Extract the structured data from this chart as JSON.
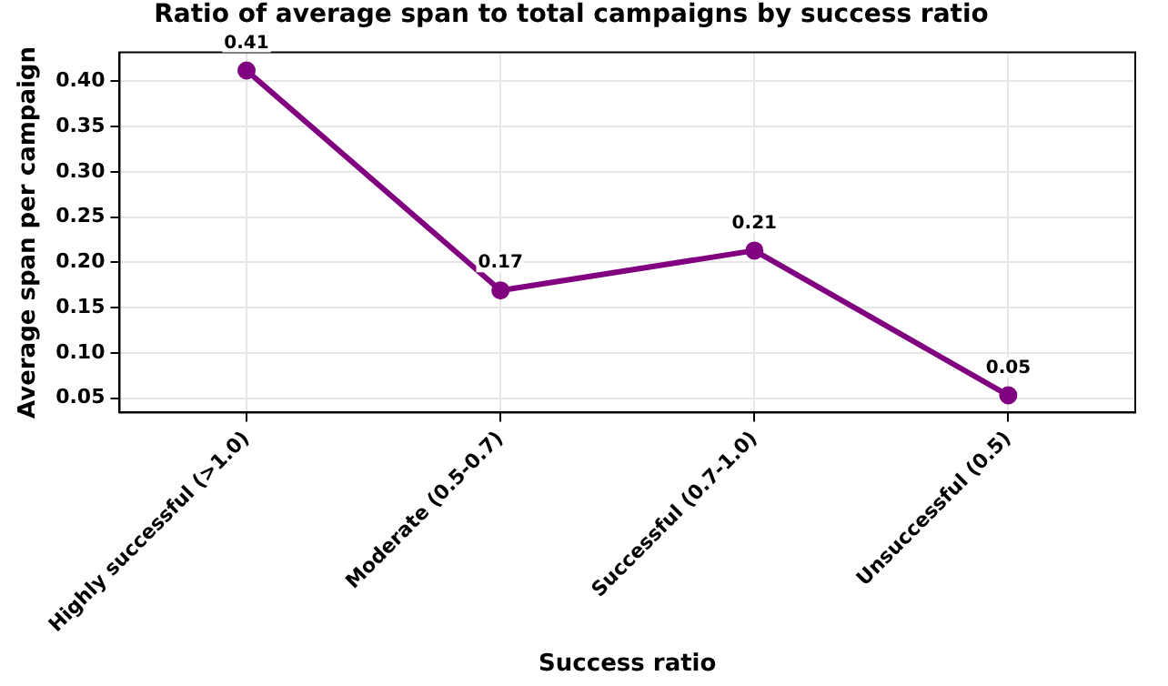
{
  "chart_data": {
    "type": "line",
    "title": "Ratio of average span to total campaigns by success ratio",
    "xlabel": "Success ratio",
    "ylabel": "Average span per campaign",
    "categories": [
      "Highly successful (>1.0)",
      "Moderate (0.5-0.7)",
      "Successful (0.7-1.0)",
      "Unsuccessful (0.5)"
    ],
    "series": [
      {
        "color": "#800080",
        "values": [
          0.412,
          0.169,
          0.213,
          0.053
        ],
        "value_labels": [
          "0.41",
          "0.17",
          "0.21",
          "0.05"
        ]
      }
    ],
    "ylim": [
      0.034,
      0.432
    ],
    "yticks": [
      0.05,
      {
        "value": 0.1,
        "label": "0.10"
      },
      0.15,
      {
        "value": 0.2,
        "label": "0.20"
      },
      0.25,
      {
        "value": 0.3,
        "label": "0.30"
      },
      0.35,
      {
        "value": 0.4,
        "label": "0.40"
      }
    ],
    "grid": true,
    "legend": false,
    "marker": "circle",
    "line_style": "solid"
  }
}
